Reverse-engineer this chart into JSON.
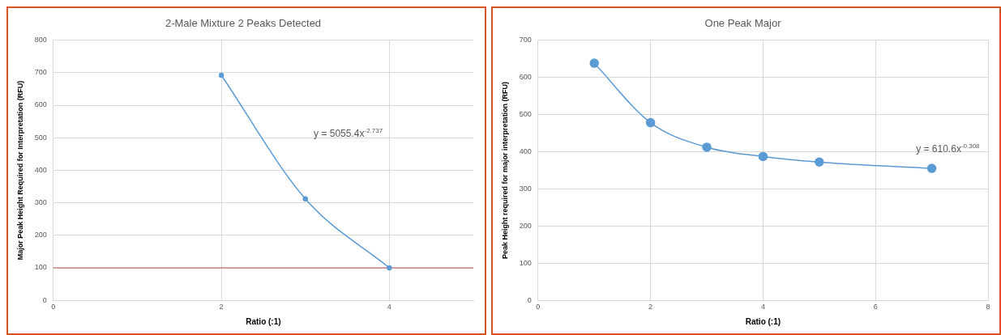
{
  "chart_data": [
    {
      "type": "line",
      "title": "2-Male Mixture 2 Peaks Detected",
      "xlabel": "Ratio (:1)",
      "ylabel": "Major Peak Height Required for Interpretation (RFU)",
      "x": [
        2,
        3,
        4
      ],
      "series": [
        {
          "color": "#5b9bd5",
          "values": [
            692,
            312,
            100
          ]
        }
      ],
      "xlim": [
        0,
        5
      ],
      "xticks": [
        0,
        2,
        4
      ],
      "ylim": [
        0,
        800
      ],
      "yticks": [
        0,
        100,
        200,
        300,
        400,
        500,
        600,
        700,
        800
      ],
      "grid": true,
      "marker": "circle",
      "line_style": "solid",
      "ref_lines": [
        {
          "axis": "y",
          "value": 100,
          "color": "#c0504d"
        }
      ],
      "annotations": [
        "y = 5055.4x$^{-2.737}$"
      ]
    },
    {
      "type": "line",
      "title": "One Peak Major",
      "xlabel": "Ratio (:1)",
      "ylabel": "Peak Height required for major interpretation (RFU)",
      "x": [
        1,
        2,
        3,
        4,
        5,
        7
      ],
      "series": [
        {
          "color": "#5b9bd5",
          "values": [
            638,
            478,
            412,
            387,
            372,
            355
          ]
        }
      ],
      "xlim": [
        0,
        8
      ],
      "xticks": [
        0,
        2,
        4,
        6,
        8
      ],
      "ylim": [
        0,
        700
      ],
      "yticks": [
        0,
        100,
        200,
        300,
        400,
        500,
        600,
        700
      ],
      "grid": true,
      "marker": "circle",
      "line_style": "solid",
      "annotations": [
        "y = 610.6x$^{-0.308}$"
      ]
    }
  ]
}
